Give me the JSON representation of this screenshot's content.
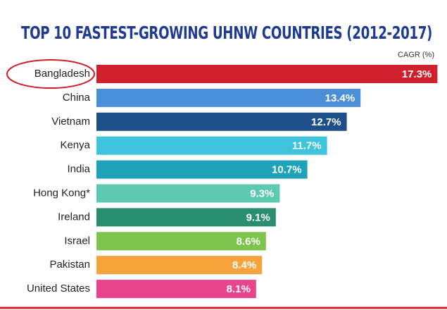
{
  "chart_data": {
    "type": "hbar",
    "title": "TOP 10 FASTEST-GROWING UHNW COUNTRIES (2012-2017)",
    "x_label": "CAGR (%)",
    "categories": [
      "Bangladesh",
      "China",
      "Vietnam",
      "Kenya",
      "India",
      "Hong Kong*",
      "Ireland",
      "Israel",
      "Pakistan",
      "United States"
    ],
    "values": [
      17.3,
      13.4,
      12.7,
      11.7,
      10.7,
      9.3,
      9.1,
      8.6,
      8.4,
      8.1
    ],
    "value_labels": [
      "17.3%",
      "13.4%",
      "12.7%",
      "11.7%",
      "10.7%",
      "9.3%",
      "9.1%",
      "8.6%",
      "8.4%",
      "8.1%"
    ],
    "colors": [
      "#d0202e",
      "#4a8fd8",
      "#1e4f8a",
      "#3ec4dc",
      "#1fa3b8",
      "#5cc9b0",
      "#2a8f6e",
      "#7cc44e",
      "#f5a33a",
      "#e8458a"
    ]
  }
}
